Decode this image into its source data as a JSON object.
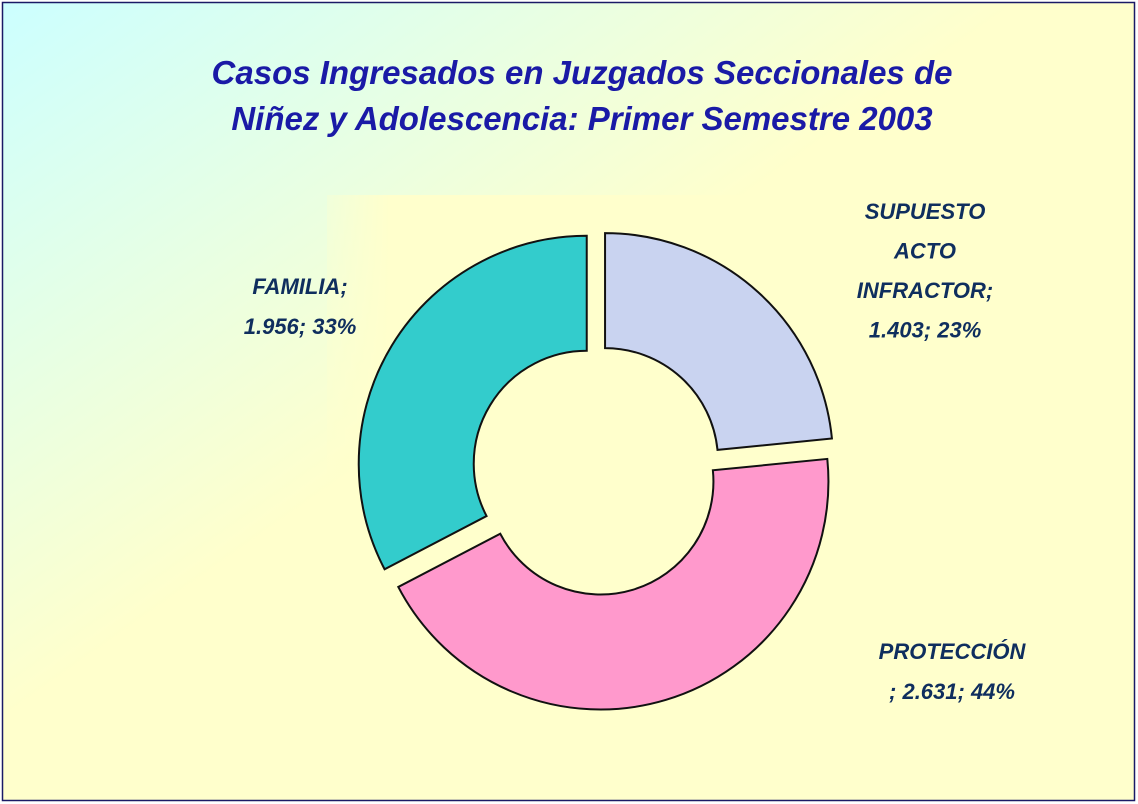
{
  "chart_data": {
    "type": "donut",
    "title": [
      "Casos Ingresados en Juzgados Seccionales de",
      "Niñez y Adolescencia: Primer Semestre 2003"
    ],
    "values": [
      1403,
      2631,
      1956
    ],
    "labels": [
      [
        "SUPUESTO",
        "ACTO",
        "INFRACTOR;",
        "1.403; 23%"
      ],
      [
        "PROTECCIÓN",
        "; 2.631; 44%"
      ],
      [
        "FAMILIA;",
        "1.956; 33%"
      ]
    ],
    "colors": [
      "#c9d3f0",
      "#ff99cc",
      "#33cccc"
    ]
  }
}
